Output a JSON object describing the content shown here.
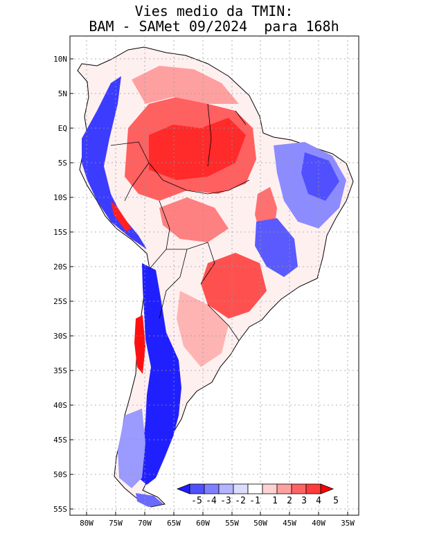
{
  "title_line1": "Vies medio da TMIN:",
  "title_line2": "BAM - SAMet 09/2024  para 168h",
  "lat_labels": [
    "10N",
    "5N",
    "EQ",
    "5S",
    "10S",
    "15S",
    "20S",
    "25S",
    "30S",
    "35S",
    "40S",
    "45S",
    "50S",
    "55S"
  ],
  "lon_labels": [
    "80W",
    "75W",
    "70W",
    "65W",
    "60W",
    "55W",
    "50W",
    "45W",
    "40W",
    "35W"
  ],
  "colorbar": {
    "labels": [
      "-5",
      "-4",
      "-3",
      "-2",
      "-1",
      "1",
      "2",
      "3",
      "4",
      "5"
    ],
    "colors": [
      "#1e1eff",
      "#5050ff",
      "#8080ff",
      "#b4b4ff",
      "#dcdcff",
      "#ffffff",
      "#ffd2d2",
      "#ffa0a0",
      "#ff6464",
      "#ff3c3c",
      "#ff0000"
    ]
  }
}
